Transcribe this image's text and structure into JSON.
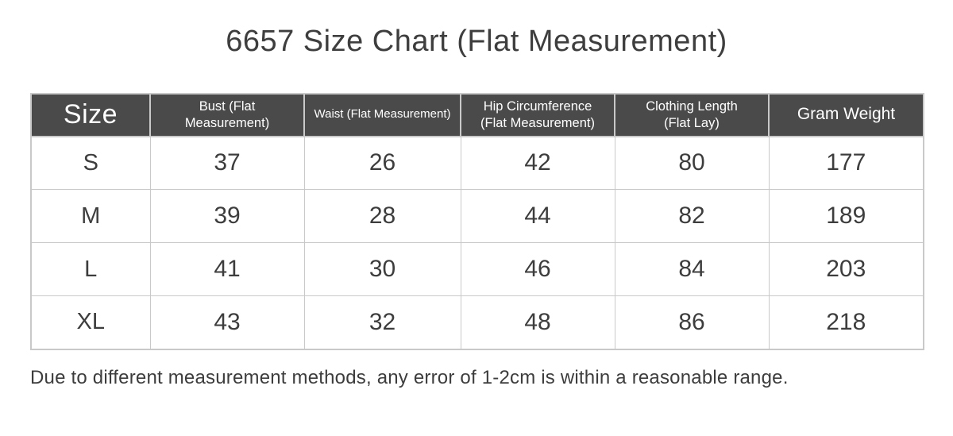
{
  "title": "6657 Size Chart (Flat Measurement)",
  "footnote": "Due to different measurement methods, any error of 1-2cm is within a reasonable range.",
  "colors": {
    "header_bg": "#4a4a4a",
    "header_text": "#ffffff",
    "body_text": "#3d3d3d",
    "border": "#c9c9c9",
    "background": "#ffffff"
  },
  "chart_data": {
    "type": "table",
    "title": "6657 Size Chart (Flat Measurement)",
    "columns": [
      "Size",
      "Bust (Flat Measurement)",
      "Waist (Flat Measurement)",
      "Hip Circumference (Flat Measurement)",
      "Clothing Length (Flat Lay)",
      "Gram Weight"
    ],
    "rows": [
      [
        "S",
        37,
        26,
        42,
        80,
        177
      ],
      [
        "M",
        39,
        28,
        44,
        82,
        189
      ],
      [
        "L",
        41,
        30,
        46,
        84,
        203
      ],
      [
        "XL",
        43,
        32,
        48,
        86,
        218
      ]
    ]
  }
}
